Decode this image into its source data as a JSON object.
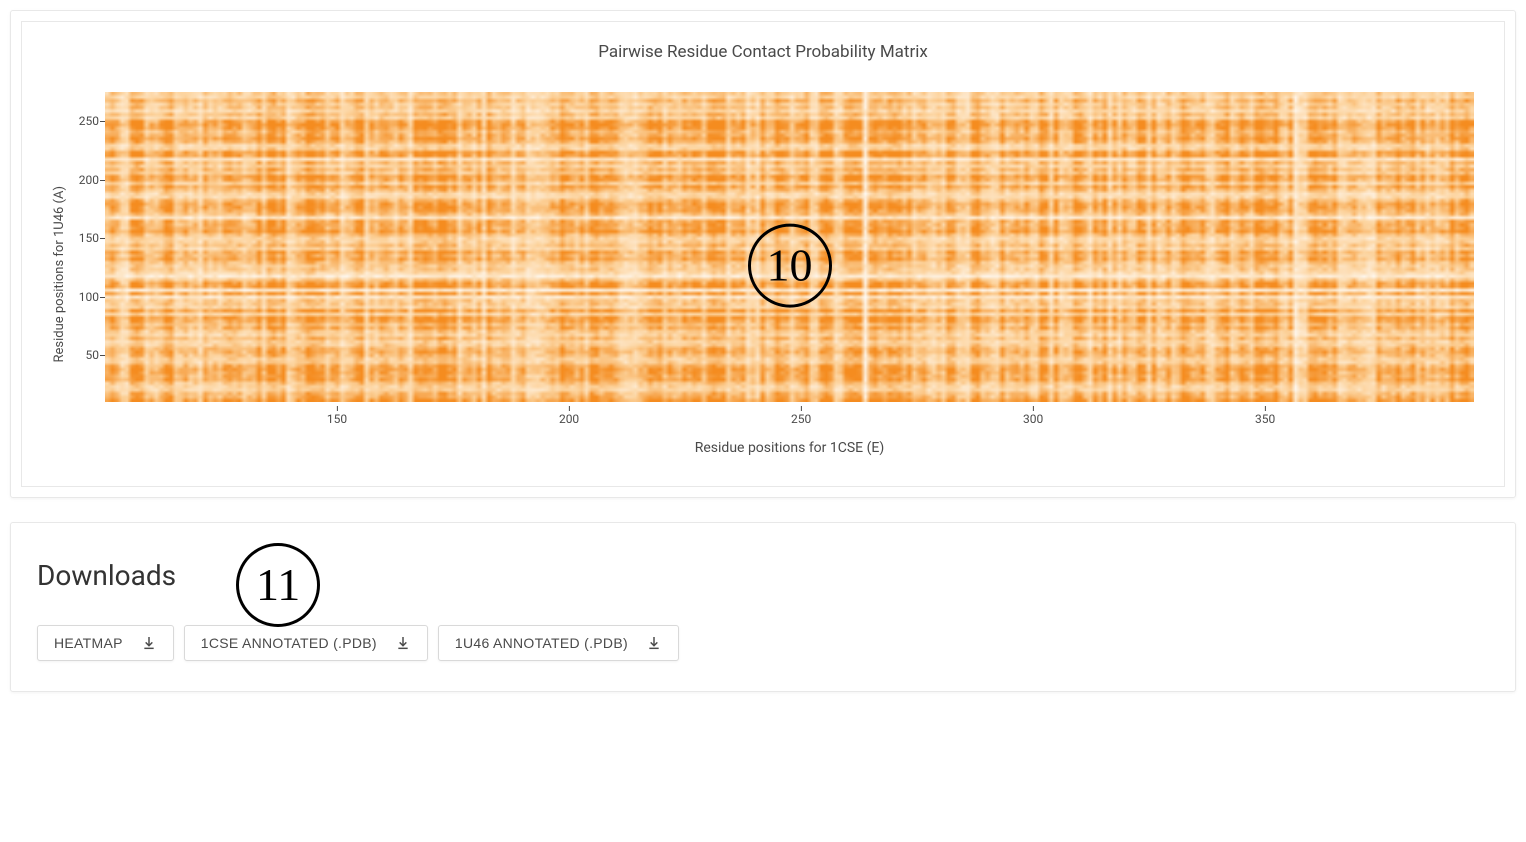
{
  "chart": {
    "type": "heatmap",
    "title": "Pairwise Residue Contact Probability Matrix",
    "x_axis": {
      "label": "Residue positions for 1CSE (E)",
      "min": 100,
      "max": 395,
      "ticks": [
        150,
        200,
        250,
        300,
        350
      ]
    },
    "y_axis": {
      "label": "Residue positions for 1U46 (A)",
      "min": 10,
      "max": 275,
      "ticks": [
        50,
        100,
        150,
        200,
        250
      ]
    },
    "colors": {
      "low": "#ffffff",
      "mid": "#fdd49e",
      "high": "#f58c1f",
      "border": "#e8e8e8",
      "title_color": "#4a4a4a",
      "tick_color": "#4a4a4a"
    },
    "title_fontsize": 17,
    "label_fontsize": 14,
    "tick_fontsize": 12,
    "canvas_cols": 280,
    "canvas_rows": 90,
    "noise_seed": 42
  },
  "annotations": [
    {
      "id": 10,
      "label": "10"
    },
    {
      "id": 11,
      "label": "11"
    }
  ],
  "downloads": {
    "title": "Downloads",
    "buttons": [
      {
        "label": "HEATMAP"
      },
      {
        "label": "1CSE ANNOTATED (.PDB)"
      },
      {
        "label": "1U46 ANNOTATED (.PDB)"
      }
    ]
  }
}
